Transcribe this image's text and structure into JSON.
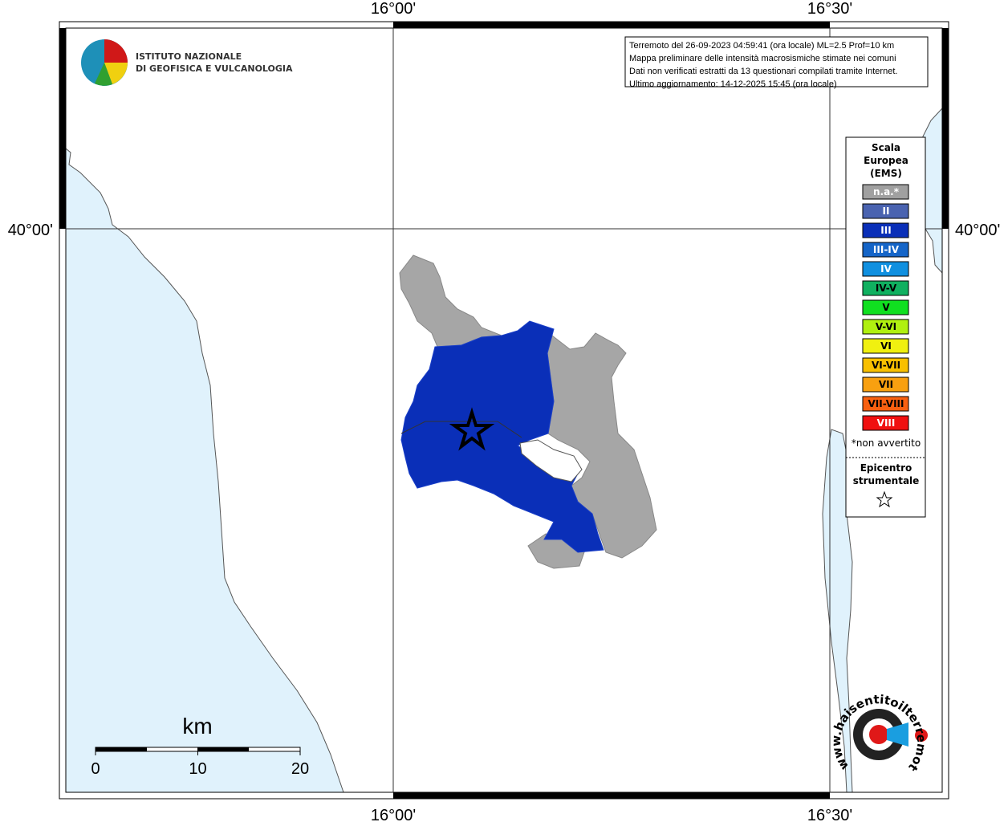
{
  "logo": {
    "line1": "ISTITUTO NAZIONALE",
    "line2": "DI GEOFISICA E VULCANOLOGIA"
  },
  "info": [
    "Terremoto del 26-09-2023 04:59:41 (ora locale) ML=2.5 Prof=10 km",
    "Mappa preliminare delle intensità macrosismiche stimate nei comuni",
    "Dati non verificati estratti da 13 questionari compilati tramite Internet.",
    "Ultimo aggiornamento: 14-12-2025 15:45 (ora locale)"
  ],
  "axes": {
    "top": [
      "16°00'",
      "16°30'"
    ],
    "bottom": [
      "16°00'",
      "16°30'"
    ],
    "left": "40°00'",
    "right": "40°00'"
  },
  "legend": {
    "title": [
      "Scala",
      "Europea",
      "(EMS)"
    ],
    "items": [
      {
        "label": "n.a.*",
        "color": "#a0a0a0",
        "text_color": "#ffffff"
      },
      {
        "label": "II",
        "color": "#4a63b0",
        "text_color": "#ffffff"
      },
      {
        "label": "III",
        "color": "#0a2fb8",
        "text_color": "#ffffff"
      },
      {
        "label": "III-IV",
        "color": "#1565c8",
        "text_color": "#ffffff"
      },
      {
        "label": "IV",
        "color": "#1090e0",
        "text_color": "#ffffff"
      },
      {
        "label": "IV-V",
        "color": "#10b060",
        "text_color": "#000000"
      },
      {
        "label": "V",
        "color": "#10e020",
        "text_color": "#000000"
      },
      {
        "label": "V-VI",
        "color": "#b0f010",
        "text_color": "#000000"
      },
      {
        "label": "VI",
        "color": "#f0f010",
        "text_color": "#000000"
      },
      {
        "label": "VI-VII",
        "color": "#f8c000",
        "text_color": "#000000"
      },
      {
        "label": "VII",
        "color": "#f8a010",
        "text_color": "#000000"
      },
      {
        "label": "VII-VIII",
        "color": "#f86010",
        "text_color": "#000000"
      },
      {
        "label": "VIII",
        "color": "#f01010",
        "text_color": "#ffffff"
      }
    ],
    "note": "*non avvertito",
    "epicenter": [
      "Epicentro",
      "strumentale"
    ]
  },
  "scale": {
    "unit": "km",
    "ticks": [
      "0",
      "10",
      "20"
    ]
  },
  "badge": {
    "url": "www.haisentitoilterremoto.it"
  }
}
